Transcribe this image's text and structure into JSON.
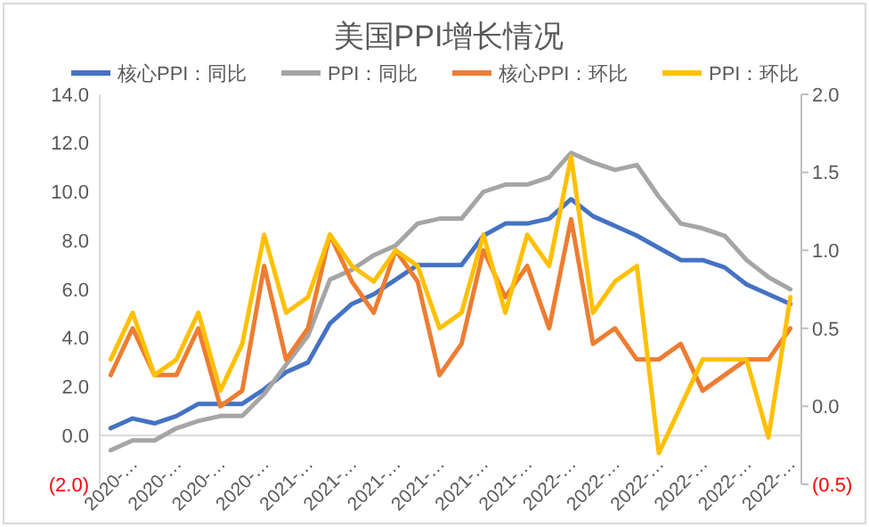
{
  "chart_data": {
    "type": "line",
    "title": "美国PPI增长情况",
    "categories": [
      "2020-…",
      null,
      "2020-…",
      null,
      "2020-…",
      null,
      "2020-…",
      null,
      "2021-…",
      null,
      "2021-…",
      null,
      "2021-…",
      null,
      "2021-…",
      null,
      "2021-…",
      null,
      "2021-…",
      null,
      "2022-…",
      null,
      "2022-…",
      null,
      "2022-…",
      null,
      "2022-…",
      null,
      "2022-…",
      null,
      "2022-…",
      null
    ],
    "series": [
      {
        "name": "核心PPI：同比",
        "color": "#4472c4",
        "values": [
          0.3,
          0.7,
          0.5,
          0.8,
          1.3,
          1.3,
          1.3,
          1.9,
          2.6,
          3.0,
          4.6,
          5.4,
          5.8,
          6.4,
          7.0,
          7.0,
          7.0,
          8.2,
          8.7,
          8.7,
          8.9,
          9.7,
          9.0,
          8.6,
          8.2,
          7.7,
          7.2,
          7.2,
          6.9,
          6.2,
          5.8,
          5.4
        ]
      },
      {
        "name": "PPI：同比",
        "color": "#a5a5a5",
        "values": [
          -0.6,
          -0.2,
          -0.2,
          0.3,
          0.6,
          0.8,
          0.8,
          1.7,
          2.9,
          4.1,
          6.4,
          6.8,
          7.4,
          7.8,
          8.7,
          8.9,
          8.9,
          10.0,
          10.3,
          10.3,
          10.6,
          11.6,
          11.2,
          10.9,
          11.1,
          9.8,
          8.7,
          8.5,
          8.2,
          7.2,
          6.5,
          6.0
        ]
      },
      {
        "name": "核心PPI：环比",
        "color": "#ed7d31",
        "axis": "y2",
        "values": [
          0.2,
          0.5,
          0.2,
          0.2,
          0.5,
          0.0,
          0.1,
          0.9,
          0.3,
          0.5,
          1.1,
          0.8,
          0.6,
          1.0,
          0.8,
          0.2,
          0.4,
          1.0,
          0.7,
          0.9,
          0.5,
          1.2,
          0.4,
          0.5,
          0.3,
          0.3,
          0.4,
          0.1,
          0.2,
          0.3,
          0.3,
          0.5
        ]
      },
      {
        "name": "PPI：环比",
        "color": "#ffc000",
        "axis": "y2",
        "values": [
          0.3,
          0.6,
          0.2,
          0.3,
          0.6,
          0.1,
          0.4,
          1.1,
          0.6,
          0.7,
          1.1,
          0.9,
          0.8,
          1.0,
          0.9,
          0.5,
          0.6,
          1.1,
          0.6,
          1.1,
          0.9,
          1.6,
          0.6,
          0.8,
          0.9,
          -0.3,
          0.0,
          0.3,
          0.3,
          0.3,
          -0.2,
          0.7
        ]
      }
    ],
    "ylim": [
      -2,
      14
    ],
    "yticks": [
      {
        "value": -2,
        "label": "(2.0)"
      },
      {
        "value": 0,
        "label": "0.0"
      },
      {
        "value": 2,
        "label": "2.0"
      },
      {
        "value": 4,
        "label": "4.0"
      },
      {
        "value": 6,
        "label": "6.0"
      },
      {
        "value": 8,
        "label": "8.0"
      },
      {
        "value": 10,
        "label": "10.0"
      },
      {
        "value": 12,
        "label": "12.0"
      },
      {
        "value": 14,
        "label": "14.0"
      }
    ],
    "y2lim": [
      -0.5,
      2
    ],
    "y2ticks": [
      {
        "value": -0.5,
        "label": "(0.5)"
      },
      {
        "value": 0,
        "label": "0.0"
      },
      {
        "value": 0.5,
        "label": "0.5"
      },
      {
        "value": 1,
        "label": "1.0"
      },
      {
        "value": 1.5,
        "label": "1.5"
      },
      {
        "value": 2,
        "label": "2.0"
      }
    ],
    "legend": "top",
    "grid": false,
    "marker": "none",
    "line_style": "solid"
  }
}
